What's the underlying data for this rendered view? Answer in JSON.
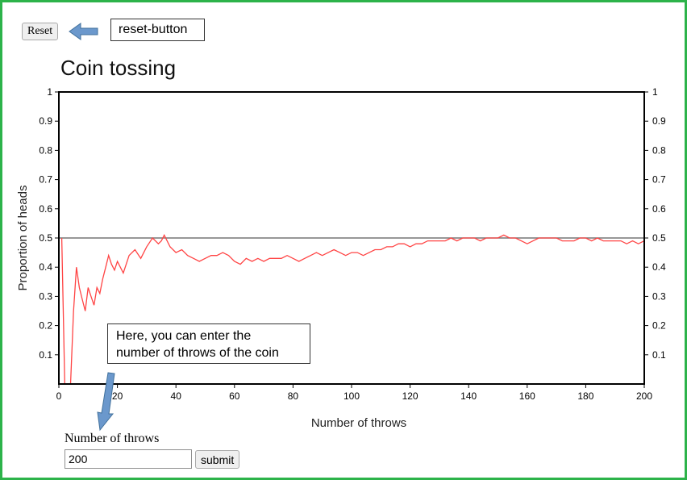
{
  "controls": {
    "reset_label": "Reset",
    "submit_label": "submit",
    "throws_label": "Number of throws",
    "throws_value": "200"
  },
  "annotations": {
    "reset_callout": "reset-button",
    "throws_callout": "Here, you can enter the\nnumber of throws of the coin",
    "arrow_color": "#6b98cc"
  },
  "chart_data": {
    "type": "line",
    "title": "Coin tossing",
    "xlabel": "Number of throws",
    "ylabel": "Proportion of heads",
    "xlim": [
      0,
      200
    ],
    "ylim": [
      0,
      1
    ],
    "x_ticks": [
      "0",
      "20",
      "40",
      "60",
      "80",
      "100",
      "120",
      "140",
      "160",
      "180",
      "200"
    ],
    "y_ticks": [
      "0.1",
      "0.2",
      "0.3",
      "0.4",
      "0.5",
      "0.6",
      "0.7",
      "0.8",
      "0.9",
      "1"
    ],
    "reference_line": 0.5,
    "line_color": "#ff4444",
    "reference_color": "#777777",
    "frame_color": "#2db34a",
    "series": [
      {
        "x": [
          1,
          2,
          3,
          4,
          5,
          6,
          7,
          8,
          9,
          10,
          11,
          12,
          13,
          14,
          15,
          16,
          17,
          18,
          19,
          20,
          22,
          24,
          26,
          28,
          30,
          32,
          34,
          35,
          36,
          38,
          40,
          42,
          44,
          46,
          48,
          50,
          52,
          54,
          56,
          58,
          60,
          62,
          64,
          66,
          68,
          70,
          72,
          74,
          76,
          78,
          80,
          82,
          84,
          86,
          88,
          90,
          92,
          94,
          96,
          98,
          100,
          102,
          104,
          106,
          108,
          110,
          112,
          114,
          116,
          118,
          120,
          122,
          124,
          126,
          128,
          130,
          132,
          134,
          136,
          138,
          140,
          142,
          144,
          146,
          148,
          150,
          152,
          154,
          156,
          158,
          160,
          162,
          164,
          166,
          168,
          170,
          172,
          174,
          176,
          178,
          180,
          182,
          184,
          186,
          188,
          190,
          192,
          194,
          196,
          198,
          200
        ],
        "values": [
          0.5,
          0.0,
          0.0,
          0.0,
          0.25,
          0.4,
          0.33,
          0.29,
          0.25,
          0.33,
          0.3,
          0.27,
          0.33,
          0.31,
          0.36,
          0.4,
          0.44,
          0.41,
          0.39,
          0.42,
          0.38,
          0.44,
          0.46,
          0.43,
          0.47,
          0.5,
          0.48,
          0.49,
          0.51,
          0.47,
          0.45,
          0.46,
          0.44,
          0.43,
          0.42,
          0.43,
          0.44,
          0.44,
          0.45,
          0.44,
          0.42,
          0.41,
          0.43,
          0.42,
          0.43,
          0.42,
          0.43,
          0.43,
          0.43,
          0.44,
          0.43,
          0.42,
          0.43,
          0.44,
          0.45,
          0.44,
          0.45,
          0.46,
          0.45,
          0.44,
          0.45,
          0.45,
          0.44,
          0.45,
          0.46,
          0.46,
          0.47,
          0.47,
          0.48,
          0.48,
          0.47,
          0.48,
          0.48,
          0.49,
          0.49,
          0.49,
          0.49,
          0.5,
          0.49,
          0.5,
          0.5,
          0.5,
          0.49,
          0.5,
          0.5,
          0.5,
          0.51,
          0.5,
          0.5,
          0.49,
          0.48,
          0.49,
          0.5,
          0.5,
          0.5,
          0.5,
          0.49,
          0.49,
          0.49,
          0.5,
          0.5,
          0.49,
          0.5,
          0.49,
          0.49,
          0.49,
          0.49,
          0.48,
          0.49,
          0.48,
          0.49
        ]
      }
    ]
  }
}
